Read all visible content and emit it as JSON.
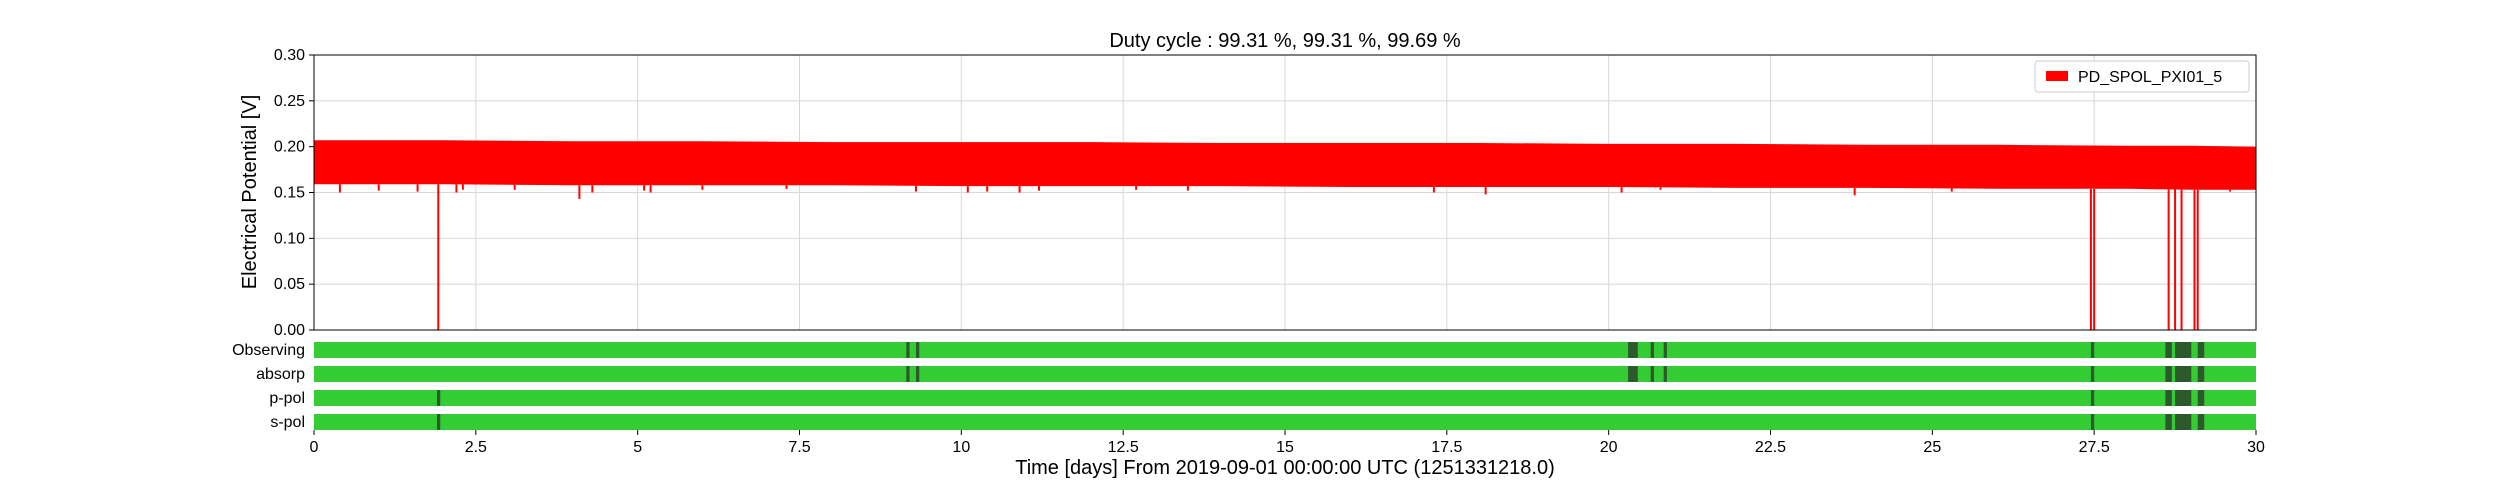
{
  "chart_data": {
    "type": "area",
    "title": "Duty cycle : 99.31 %, 99.31 %, 99.69 %",
    "xlabel": "Time [days] From 2019-09-01 00:00:00 UTC (1251331218.0)",
    "ylabel": "Electrical Potential [V]",
    "xlim": [
      0,
      30
    ],
    "ylim": [
      0,
      0.3
    ],
    "x_ticks": [
      0,
      2.5,
      5,
      7.5,
      10,
      12.5,
      15,
      17.5,
      20,
      22.5,
      25,
      27.5,
      30
    ],
    "x_tick_labels": [
      "0",
      "2.5",
      "5",
      "7.5",
      "10",
      "12.5",
      "15",
      "17.5",
      "20",
      "22.5",
      "25",
      "27.5",
      "30"
    ],
    "y_ticks": [
      0,
      0.05,
      0.1,
      0.15,
      0.2,
      0.25,
      0.3
    ],
    "y_tick_labels": [
      "0.00",
      "0.05",
      "0.10",
      "0.15",
      "0.20",
      "0.25",
      "0.30"
    ],
    "grid": true,
    "legend_position": "top-right",
    "series": [
      {
        "name": "PD_SPOL_PXI01_5",
        "color": "#ff0000",
        "band_x": [
          0,
          2,
          4,
          6,
          8,
          10,
          12,
          14,
          16,
          18,
          20,
          22,
          24,
          26,
          28,
          29,
          30
        ],
        "band_upper": [
          0.207,
          0.207,
          0.206,
          0.206,
          0.205,
          0.205,
          0.205,
          0.204,
          0.204,
          0.204,
          0.203,
          0.203,
          0.202,
          0.202,
          0.201,
          0.201,
          0.2
        ],
        "band_lower": [
          0.159,
          0.159,
          0.158,
          0.158,
          0.158,
          0.157,
          0.157,
          0.157,
          0.156,
          0.156,
          0.156,
          0.155,
          0.155,
          0.154,
          0.154,
          0.153,
          0.153
        ],
        "dips": [
          {
            "x": 0.4,
            "y": 0.15
          },
          {
            "x": 1.0,
            "y": 0.152
          },
          {
            "x": 1.6,
            "y": 0.151
          },
          {
            "x": 1.92,
            "y": 0.0
          },
          {
            "x": 2.2,
            "y": 0.15
          },
          {
            "x": 2.3,
            "y": 0.153
          },
          {
            "x": 3.1,
            "y": 0.153
          },
          {
            "x": 4.1,
            "y": 0.143
          },
          {
            "x": 4.3,
            "y": 0.15
          },
          {
            "x": 5.1,
            "y": 0.152
          },
          {
            "x": 5.2,
            "y": 0.15
          },
          {
            "x": 6.0,
            "y": 0.153
          },
          {
            "x": 7.3,
            "y": 0.154
          },
          {
            "x": 9.3,
            "y": 0.151
          },
          {
            "x": 10.1,
            "y": 0.15
          },
          {
            "x": 10.4,
            "y": 0.151
          },
          {
            "x": 10.9,
            "y": 0.15
          },
          {
            "x": 11.2,
            "y": 0.152
          },
          {
            "x": 12.7,
            "y": 0.153
          },
          {
            "x": 13.5,
            "y": 0.152
          },
          {
            "x": 17.3,
            "y": 0.15
          },
          {
            "x": 18.1,
            "y": 0.148
          },
          {
            "x": 20.2,
            "y": 0.15
          },
          {
            "x": 20.8,
            "y": 0.153
          },
          {
            "x": 23.8,
            "y": 0.147
          },
          {
            "x": 25.3,
            "y": 0.151
          },
          {
            "x": 27.45,
            "y": 0.0
          },
          {
            "x": 27.5,
            "y": 0.0
          },
          {
            "x": 28.65,
            "y": 0.0
          },
          {
            "x": 28.75,
            "y": 0.0
          },
          {
            "x": 28.85,
            "y": 0.0
          },
          {
            "x": 29.05,
            "y": 0.0
          },
          {
            "x": 29.1,
            "y": 0.0
          },
          {
            "x": 29.6,
            "y": 0.151
          }
        ]
      }
    ],
    "flags": {
      "good_color": "#33cc33",
      "bad_color": "#2d5a2d",
      "rows": [
        {
          "label": "Observing",
          "gaps": [
            [
              9.15,
              9.2
            ],
            [
              9.3,
              9.35
            ],
            [
              20.3,
              20.45
            ],
            [
              20.65,
              20.7
            ],
            [
              20.85,
              20.9
            ],
            [
              27.45,
              27.5
            ],
            [
              28.6,
              28.7
            ],
            [
              28.75,
              29.0
            ],
            [
              29.1,
              29.2
            ]
          ]
        },
        {
          "label": "absorp",
          "gaps": [
            [
              9.15,
              9.2
            ],
            [
              9.3,
              9.35
            ],
            [
              20.3,
              20.45
            ],
            [
              20.65,
              20.7
            ],
            [
              20.85,
              20.9
            ],
            [
              27.45,
              27.5
            ],
            [
              28.6,
              28.7
            ],
            [
              28.75,
              29.0
            ],
            [
              29.1,
              29.2
            ]
          ]
        },
        {
          "label": "p-pol",
          "gaps": [
            [
              1.9,
              1.95
            ],
            [
              27.45,
              27.5
            ],
            [
              28.6,
              28.7
            ],
            [
              28.75,
              29.0
            ],
            [
              29.1,
              29.2
            ]
          ]
        },
        {
          "label": "s-pol",
          "gaps": [
            [
              1.9,
              1.95
            ],
            [
              27.45,
              27.5
            ],
            [
              28.6,
              28.7
            ],
            [
              28.75,
              29.0
            ],
            [
              29.1,
              29.2
            ]
          ]
        }
      ]
    }
  }
}
